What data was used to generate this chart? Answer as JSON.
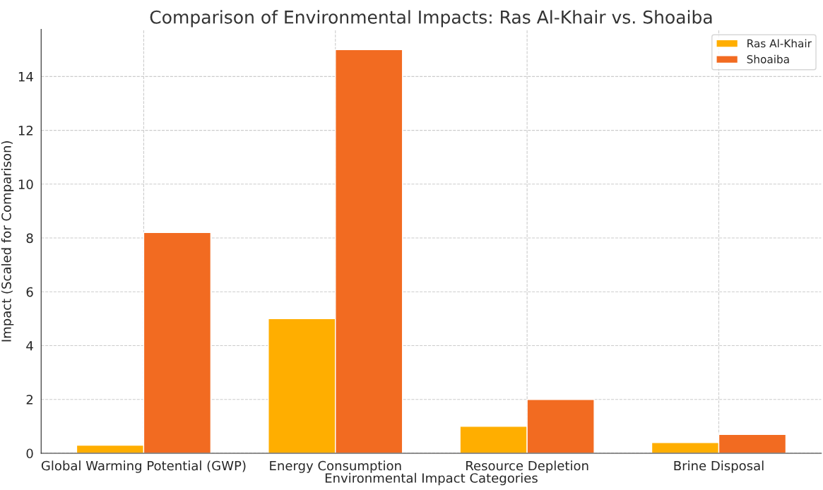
{
  "chart_data": {
    "type": "bar",
    "title": "Comparison of Environmental Impacts: Ras Al-Khair vs. Shoaiba",
    "xlabel": "Environmental Impact Categories",
    "ylabel": "Impact (Scaled for Comparison)",
    "categories": [
      "Global Warming Potential (GWP)",
      "Energy Consumption",
      "Resource Depletion",
      "Brine Disposal"
    ],
    "series": [
      {
        "name": "Ras Al-Khair",
        "color": "#ffae00",
        "values": [
          0.3,
          5,
          1,
          0.4
        ]
      },
      {
        "name": "Shoaiba",
        "color": "#f26b21",
        "values": [
          8.2,
          15,
          2,
          0.7
        ]
      }
    ],
    "ylim": [
      0,
      15.75
    ],
    "yticks": [
      0,
      2,
      4,
      6,
      8,
      10,
      12,
      14
    ],
    "grid": true,
    "legend": "top right"
  }
}
